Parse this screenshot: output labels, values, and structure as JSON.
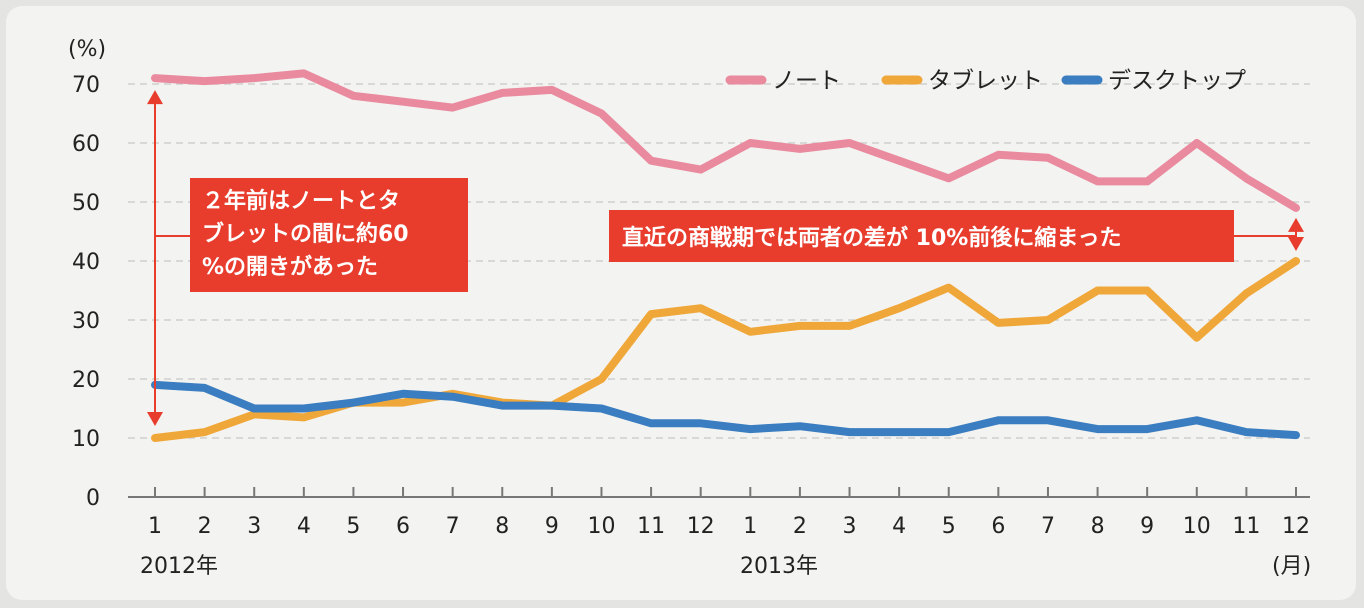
{
  "chart_data": {
    "type": "line",
    "y_unit": "(%)",
    "x_unit": "(月)",
    "ylim": [
      0,
      70
    ],
    "y_ticks": [
      0,
      10,
      20,
      30,
      40,
      50,
      60,
      70
    ],
    "grid": true,
    "legend_position": "top-right",
    "categories": [
      "1",
      "2",
      "3",
      "4",
      "5",
      "6",
      "7",
      "8",
      "9",
      "10",
      "11",
      "12",
      "1",
      "2",
      "3",
      "4",
      "5",
      "6",
      "7",
      "8",
      "9",
      "10",
      "11",
      "12"
    ],
    "year_labels": [
      {
        "label": "2012年",
        "index": 0
      },
      {
        "label": "2013年",
        "index": 12
      }
    ],
    "series": [
      {
        "name": "ノート",
        "color": "#e98a9e",
        "values": [
          71,
          70.5,
          71,
          71.8,
          68,
          67,
          66,
          68.5,
          69,
          65,
          57,
          55.5,
          60,
          59,
          60,
          57,
          54,
          58,
          57.5,
          53.5,
          53.5,
          60,
          54,
          49
        ]
      },
      {
        "name": "タブレット",
        "color": "#f0a73a",
        "values": [
          10,
          11,
          14,
          13.5,
          16,
          16,
          17.5,
          16,
          15.5,
          20,
          31,
          32,
          28,
          29,
          29,
          32,
          35.5,
          29.5,
          30,
          35,
          35,
          27,
          34.5,
          40
        ]
      },
      {
        "name": "デスクトップ",
        "color": "#3a7dc0",
        "values": [
          19,
          18.5,
          15,
          15,
          16,
          17.5,
          17,
          15.5,
          15.5,
          15,
          12.5,
          12.5,
          11.5,
          12,
          11,
          11,
          11,
          13,
          13,
          11.5,
          11.5,
          13,
          11,
          10.5
        ]
      }
    ],
    "annotations": [
      {
        "id": "left",
        "lines": [
          "２年前はノートとタ",
          "ブレットの間に約60",
          "%の開きがあった"
        ],
        "color": "#e83c2d"
      },
      {
        "id": "right",
        "lines": [
          "直近の商戦期では両者の差が 10%前後に縮まった"
        ],
        "color": "#e83c2d"
      }
    ]
  }
}
